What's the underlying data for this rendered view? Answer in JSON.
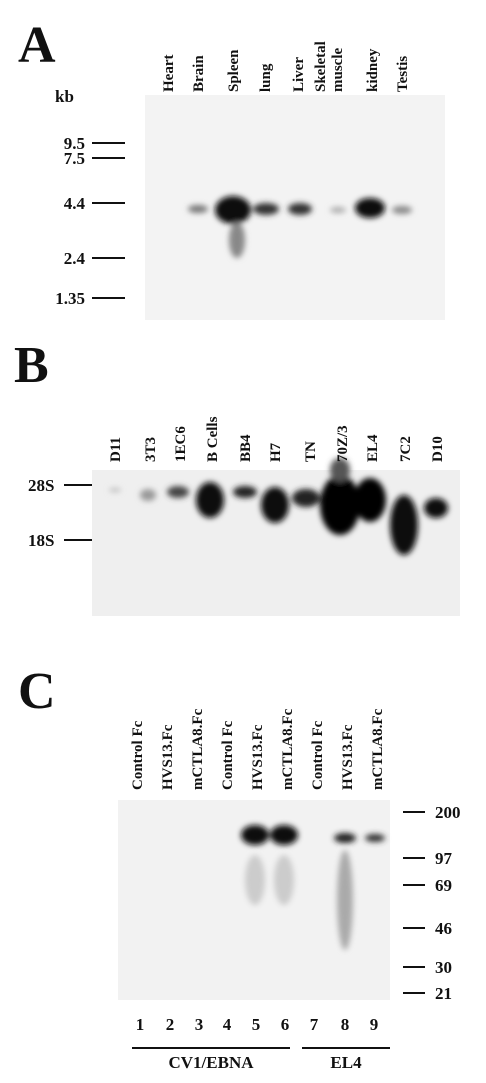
{
  "panels": [
    {
      "letter": "A",
      "unit": "kb",
      "lane_labels": [
        "Heart",
        "Brain",
        "Spleen",
        "lung",
        "Liver",
        "Skeletal",
        "muscle",
        "kidney",
        "Testis"
      ],
      "markers": [
        "9.5",
        "7.5",
        "4.4",
        "2.4",
        "1.35"
      ]
    },
    {
      "letter": "B",
      "lane_labels": [
        "D11",
        "3T3",
        "1EC6",
        "B Cells",
        "BB4",
        "H7",
        "TN",
        "70Z/3",
        "EL4",
        "7C2",
        "D10"
      ],
      "markers": [
        "28S",
        "18S"
      ]
    },
    {
      "letter": "C",
      "lane_labels": [
        "Control Fc",
        "HVS13.Fc",
        "mCTLA8.Fc",
        "Control Fc",
        "HVS13.Fc",
        "mCTLA8.Fc",
        "Control Fc",
        "HVS13.Fc",
        "mCTLA8.Fc"
      ],
      "markers": [
        "200",
        "97",
        "69",
        "46",
        "30",
        "21"
      ],
      "lane_numbers": [
        "1",
        "2",
        "3",
        "4",
        "5",
        "6",
        "7",
        "8",
        "9"
      ],
      "groups": [
        "CV1/EBNA",
        "EL4"
      ]
    }
  ]
}
